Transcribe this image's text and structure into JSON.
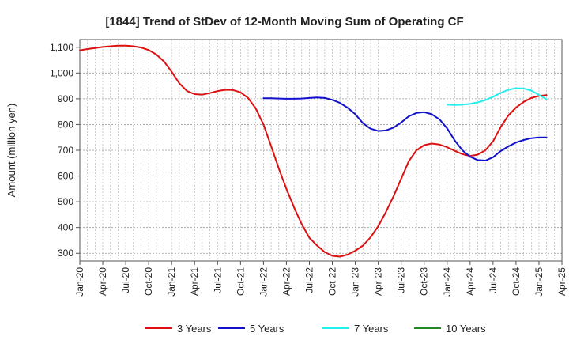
{
  "chart_data": {
    "type": "line",
    "title": "[1844]  Trend of StDev of 12-Month Moving Sum of Operating CF",
    "ylabel": "Amount (million yen)",
    "xlabel": "",
    "ylim": [
      270,
      1130
    ],
    "yticks": [
      300,
      400,
      500,
      600,
      700,
      800,
      900,
      1000,
      1100
    ],
    "ytick_labels": [
      "300",
      "400",
      "500",
      "600",
      "700",
      "800",
      "900",
      "1,000",
      "1,100"
    ],
    "x_start": "Jan-20",
    "x_end": "Apr-25",
    "xtick_labels": [
      "Jan-20",
      "Apr-20",
      "Jul-20",
      "Oct-20",
      "Jan-21",
      "Apr-21",
      "Jul-21",
      "Oct-21",
      "Jan-22",
      "Apr-22",
      "Jul-22",
      "Oct-22",
      "Jan-23",
      "Apr-23",
      "Jul-23",
      "Oct-23",
      "Jan-24",
      "Apr-24",
      "Jul-24",
      "Oct-24",
      "Jan-25",
      "Apr-25"
    ],
    "grid": true,
    "legend_position": "bottom",
    "series": [
      {
        "name": "3 Years",
        "color": "#dd1111",
        "points": [
          [
            "Jan-20",
            1088
          ],
          [
            "Feb-20",
            1093
          ],
          [
            "Mar-20",
            1097
          ],
          [
            "Apr-20",
            1101
          ],
          [
            "May-20",
            1104
          ],
          [
            "Jun-20",
            1106
          ],
          [
            "Jul-20",
            1106
          ],
          [
            "Aug-20",
            1104
          ],
          [
            "Sep-20",
            1099
          ],
          [
            "Oct-20",
            1089
          ],
          [
            "Nov-20",
            1072
          ],
          [
            "Dec-20",
            1045
          ],
          [
            "Jan-21",
            1005
          ],
          [
            "Feb-21",
            960
          ],
          [
            "Mar-21",
            930
          ],
          [
            "Apr-21",
            918
          ],
          [
            "May-21",
            916
          ],
          [
            "Jun-21",
            922
          ],
          [
            "Jul-21",
            930
          ],
          [
            "Aug-21",
            935
          ],
          [
            "Sep-21",
            934
          ],
          [
            "Oct-21",
            925
          ],
          [
            "Nov-21",
            903
          ],
          [
            "Dec-21",
            862
          ],
          [
            "Jan-22",
            800
          ],
          [
            "Feb-22",
            716
          ],
          [
            "Mar-22",
            630
          ],
          [
            "Apr-22",
            550
          ],
          [
            "May-22",
            478
          ],
          [
            "Jun-22",
            413
          ],
          [
            "Jul-22",
            360
          ],
          [
            "Aug-22",
            330
          ],
          [
            "Sep-22",
            305
          ],
          [
            "Oct-22",
            290
          ],
          [
            "Nov-22",
            287
          ],
          [
            "Dec-22",
            295
          ],
          [
            "Jan-23",
            310
          ],
          [
            "Feb-23",
            330
          ],
          [
            "Mar-23",
            362
          ],
          [
            "Apr-23",
            405
          ],
          [
            "May-23",
            460
          ],
          [
            "Jun-23",
            522
          ],
          [
            "Jul-23",
            590
          ],
          [
            "Aug-23",
            658
          ],
          [
            "Sep-23",
            700
          ],
          [
            "Oct-23",
            720
          ],
          [
            "Nov-23",
            726
          ],
          [
            "Dec-23",
            722
          ],
          [
            "Jan-24",
            712
          ],
          [
            "Feb-24",
            698
          ],
          [
            "Mar-24",
            685
          ],
          [
            "Apr-24",
            678
          ],
          [
            "May-24",
            683
          ],
          [
            "Jun-24",
            700
          ],
          [
            "Jul-24",
            735
          ],
          [
            "Aug-24",
            790
          ],
          [
            "Sep-24",
            835
          ],
          [
            "Oct-24",
            866
          ],
          [
            "Nov-24",
            888
          ],
          [
            "Dec-24",
            903
          ],
          [
            "Jan-25",
            911
          ],
          [
            "Feb-25",
            914
          ]
        ]
      },
      {
        "name": "5 Years",
        "color": "#1111cc",
        "points": [
          [
            "Jan-22",
            902
          ],
          [
            "Feb-22",
            902
          ],
          [
            "Mar-22",
            901
          ],
          [
            "Apr-22",
            900
          ],
          [
            "May-22",
            900
          ],
          [
            "Jun-22",
            901
          ],
          [
            "Jul-22",
            903
          ],
          [
            "Aug-22",
            905
          ],
          [
            "Sep-22",
            903
          ],
          [
            "Oct-22",
            896
          ],
          [
            "Nov-22",
            884
          ],
          [
            "Dec-22",
            865
          ],
          [
            "Jan-23",
            840
          ],
          [
            "Feb-23",
            805
          ],
          [
            "Mar-23",
            784
          ],
          [
            "Apr-23",
            775
          ],
          [
            "May-23",
            777
          ],
          [
            "Jun-23",
            788
          ],
          [
            "Jul-23",
            808
          ],
          [
            "Aug-23",
            832
          ],
          [
            "Sep-23",
            845
          ],
          [
            "Oct-23",
            848
          ],
          [
            "Nov-23",
            840
          ],
          [
            "Dec-23",
            820
          ],
          [
            "Jan-24",
            785
          ],
          [
            "Feb-24",
            738
          ],
          [
            "Mar-24",
            700
          ],
          [
            "Apr-24",
            675
          ],
          [
            "May-24",
            662
          ],
          [
            "Jun-24",
            660
          ],
          [
            "Jul-24",
            673
          ],
          [
            "Aug-24",
            697
          ],
          [
            "Sep-24",
            715
          ],
          [
            "Oct-24",
            730
          ],
          [
            "Nov-24",
            740
          ],
          [
            "Dec-24",
            747
          ],
          [
            "Jan-25",
            750
          ],
          [
            "Feb-25",
            750
          ]
        ]
      },
      {
        "name": "7 Years",
        "color": "#22eeee",
        "points": [
          [
            "Jan-24",
            877
          ],
          [
            "Feb-24",
            876
          ],
          [
            "Mar-24",
            877
          ],
          [
            "Apr-24",
            880
          ],
          [
            "May-24",
            886
          ],
          [
            "Jun-24",
            895
          ],
          [
            "Jul-24",
            908
          ],
          [
            "Aug-24",
            923
          ],
          [
            "Sep-24",
            935
          ],
          [
            "Oct-24",
            941
          ],
          [
            "Nov-24",
            940
          ],
          [
            "Dec-24",
            932
          ],
          [
            "Jan-25",
            915
          ],
          [
            "Feb-25",
            898
          ]
        ]
      },
      {
        "name": "10 Years",
        "color": "#228822",
        "points": []
      }
    ]
  }
}
